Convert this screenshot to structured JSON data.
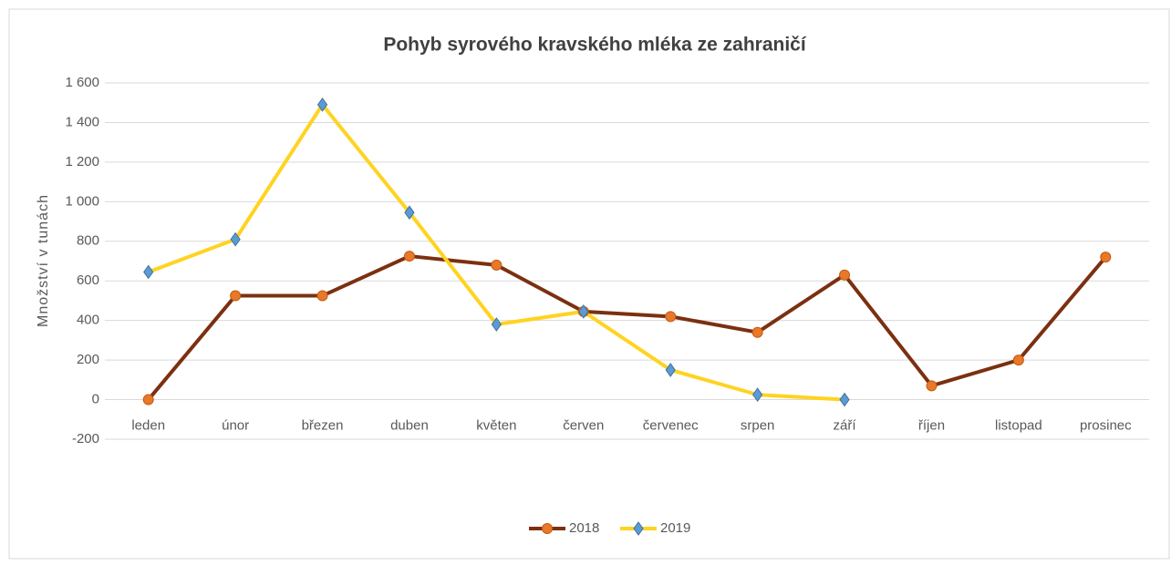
{
  "chart_data": {
    "type": "line",
    "title": "Pohyb syrového kravského mléka ze zahraničí",
    "y_label": "Množství v tunách",
    "categories": [
      "leden",
      "únor",
      "březen",
      "duben",
      "květen",
      "červen",
      "červenec",
      "srpen",
      "září",
      "říjen",
      "listopad",
      "prosinec"
    ],
    "series": [
      {
        "name": "2018",
        "color": "#7b3010",
        "marker": "circle",
        "marker_color": "#e8782a",
        "values": [
          0,
          525,
          525,
          725,
          680,
          445,
          420,
          340,
          630,
          70,
          200,
          720
        ]
      },
      {
        "name": "2019",
        "color": "#ffd320",
        "marker": "diamond",
        "marker_color": "#5b9bd5",
        "values": [
          645,
          810,
          1490,
          945,
          380,
          445,
          150,
          25,
          0,
          null,
          null,
          null
        ]
      }
    ],
    "ylim": [
      -200,
      1600
    ],
    "yticks": [
      -200,
      0,
      200,
      400,
      600,
      800,
      {
        "value": 1000,
        "label": "1 000"
      },
      {
        "value": 1200,
        "label": "1 200"
      },
      {
        "value": 1400,
        "label": "1 400"
      },
      {
        "value": 1600,
        "label": "1 600"
      }
    ],
    "grid": true,
    "legend": "bottom"
  }
}
